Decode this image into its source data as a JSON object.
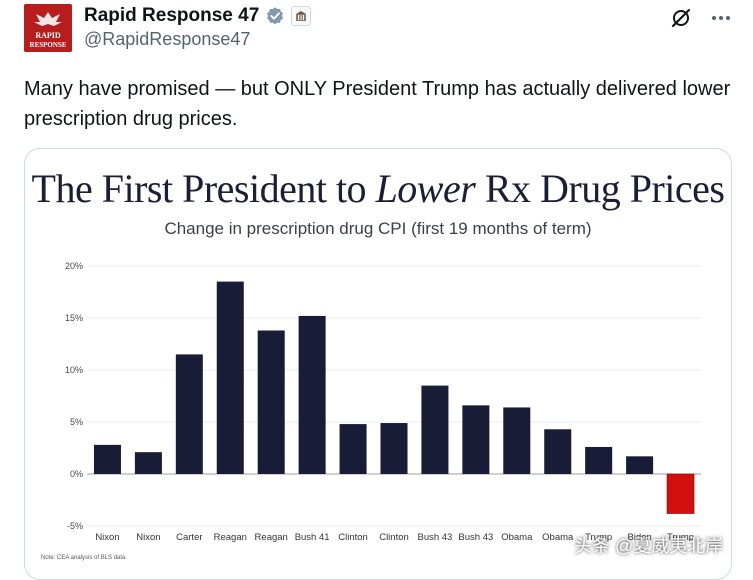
{
  "header": {
    "display_name": "Rapid Response 47",
    "handle": "@RapidResponse47",
    "avatar_text": "RAPID RESPONSE"
  },
  "tweet": {
    "text": "Many have promised — but ONLY President Trump has actually delivered lower prescription drug prices."
  },
  "chart_data": {
    "type": "bar",
    "title_part1": "The First President to ",
    "title_em": "Lower",
    "title_part2": " Rx Drug Prices",
    "subtitle": "Change in prescription drug CPI (first 19 months of term)",
    "categories": [
      "Nixon",
      "Nixon",
      "Carter",
      "Reagan",
      "Reagan",
      "Bush 41",
      "Clinton",
      "Clinton",
      "Bush 43",
      "Bush 43",
      "Obama",
      "Obama",
      "Trump",
      "Biden",
      "Trump"
    ],
    "values": [
      2.8,
      2.1,
      11.5,
      18.5,
      13.8,
      15.2,
      4.8,
      4.9,
      8.5,
      6.6,
      6.4,
      4.3,
      2.6,
      1.7,
      -3.8
    ],
    "highlight_index": 14,
    "yticks": [
      20,
      15,
      10,
      5,
      0,
      -5
    ],
    "ylim": [
      -5,
      20
    ],
    "note": "Note: CEA analysis of BLS data"
  },
  "colors": {
    "bar": "#191c36",
    "highlight": "#d30e0e",
    "verified": "#1d9bf0"
  },
  "watermark": "头条 @夏威夷北岸"
}
